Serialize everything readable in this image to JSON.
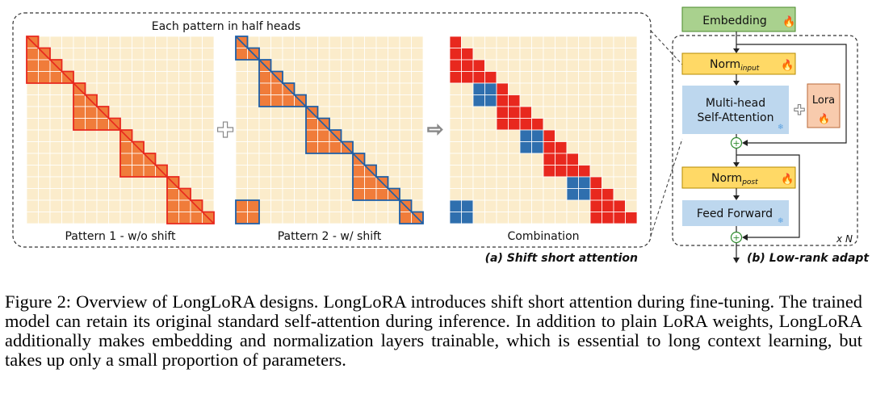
{
  "panel_a": {
    "header": "Each pattern in half heads",
    "caption": "(a) Shift short attention",
    "grids": [
      {
        "label": "Pattern 1 - w/o shift",
        "type": "no_shift"
      },
      {
        "label": "Pattern 2 - w/ shift",
        "type": "shift"
      },
      {
        "label": "Combination",
        "type": "combination"
      }
    ],
    "plus_symbol": "✚",
    "arrow_symbol": "⇨",
    "grid_size": 16,
    "block_size": 4,
    "colors": {
      "background": "#fbeccb",
      "orange": "#f07c3a",
      "red_line": "#e8281e",
      "blue": "#2f6fae",
      "blue_line": "#1d5fa8",
      "combo_red": "#e8281e",
      "combo_blue": "#2f6fae"
    }
  },
  "panel_b": {
    "caption": "(b) Low-rank adapt",
    "repeat": "x N",
    "embedding": "Embedding",
    "norm_input": {
      "main": "Norm",
      "sub": "input"
    },
    "attention": [
      "Multi-head",
      "Self-Attention"
    ],
    "lora": "Lora",
    "norm_post": {
      "main": "Norm",
      "sub": "post"
    },
    "feed_forward": "Feed Forward",
    "fire_icon": "🔥",
    "snow_icon": "❄",
    "colors": {
      "embedding": "#a9d18e",
      "norm": "#ffd966",
      "attention": "#bdd7ee",
      "lora": "#f8cbad"
    }
  },
  "caption": "Figure 2: Overview of LongLoRA designs. LongLoRA introduces shift short attention during fine-tuning. The trained model can retain its original standard self-attention during inference. In addition to plain LoRA weights, LongLoRA additionally makes embedding and normalization layers trainable, which is essential to long context learning, but takes up only a small proportion of parameters."
}
